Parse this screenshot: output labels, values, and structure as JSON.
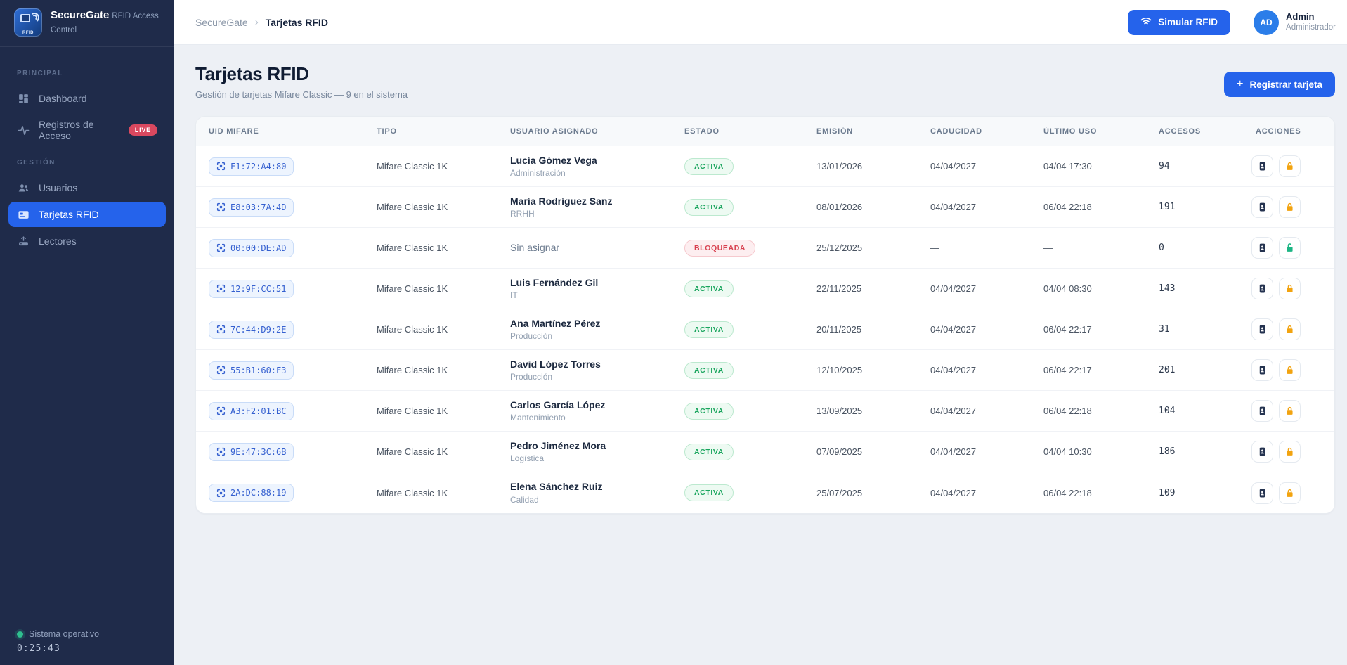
{
  "colors": {
    "sidebar_bg": "#1f2b4a",
    "accent_blue": "#2563eb",
    "live_red": "#d9485f",
    "active_green": "#17a45c",
    "blocked_red": "#d8404f",
    "lock_amber": "#f2a30f",
    "unlock_green": "#1db584"
  },
  "sidebar": {
    "logo": {
      "title": "SecureGate",
      "subtitle": "RFID Access Control",
      "badge_text": "RFID"
    },
    "sections": [
      {
        "label": "PRINCIPAL",
        "items": [
          {
            "label": "Dashboard",
            "icon": "dashboard-icon",
            "active": false
          },
          {
            "label": "Registros de Acceso",
            "icon": "activity-icon",
            "badge": "LIVE",
            "active": false
          }
        ]
      },
      {
        "label": "GESTIÓN",
        "items": [
          {
            "label": "Usuarios",
            "icon": "users-icon",
            "active": false
          },
          {
            "label": "Tarjetas RFID",
            "icon": "card-icon",
            "active": true
          },
          {
            "label": "Lectores",
            "icon": "reader-icon",
            "active": false
          }
        ]
      }
    ],
    "footer": {
      "status_label": "Sistema operativo",
      "uptime": "0:25:43"
    }
  },
  "topbar": {
    "breadcrumb": {
      "root": "SecureGate",
      "current": "Tarjetas RFID"
    },
    "simulate_button": {
      "icon": "wifi-icon",
      "label": "Simular RFID"
    },
    "user": {
      "initials": "AD",
      "name": "Admin",
      "role": "Administrador"
    }
  },
  "page": {
    "title": "Tarjetas RFID",
    "subtitle": "Gestión de tarjetas Mifare Classic — 9 en el sistema",
    "register_button": {
      "icon": "plus-icon",
      "label": "Registrar tarjeta"
    }
  },
  "table": {
    "columns": [
      "UID MIFARE",
      "TIPO",
      "USUARIO ASIGNADO",
      "ESTADO",
      "EMISIÓN",
      "CADUCIDAD",
      "ÚLTIMO USO",
      "ACCESOS",
      "ACCIONES"
    ],
    "rows": [
      {
        "uid": "F1:72:A4:80",
        "tipo": "Mifare Classic 1K",
        "usuario": "Lucía Gómez Vega",
        "departamento": "Administración",
        "estado": "ACTIVA",
        "emision": "13/01/2026",
        "caducidad": "04/04/2027",
        "ultimo_uso": "04/04 17:30",
        "accesos": "94",
        "lock_icon": "lock-closed-icon"
      },
      {
        "uid": "E8:03:7A:4D",
        "tipo": "Mifare Classic 1K",
        "usuario": "María Rodríguez Sanz",
        "departamento": "RRHH",
        "estado": "ACTIVA",
        "emision": "08/01/2026",
        "caducidad": "04/04/2027",
        "ultimo_uso": "06/04 22:18",
        "accesos": "191",
        "lock_icon": "lock-closed-icon"
      },
      {
        "uid": "00:00:DE:AD",
        "tipo": "Mifare Classic 1K",
        "usuario": "Sin asignar",
        "departamento": "",
        "estado": "BLOQUEADA",
        "emision": "25/12/2025",
        "caducidad": "—",
        "ultimo_uso": "—",
        "accesos": "0",
        "lock_icon": "lock-open-icon"
      },
      {
        "uid": "12:9F:CC:51",
        "tipo": "Mifare Classic 1K",
        "usuario": "Luis Fernández Gil",
        "departamento": "IT",
        "estado": "ACTIVA",
        "emision": "22/11/2025",
        "caducidad": "04/04/2027",
        "ultimo_uso": "04/04 08:30",
        "accesos": "143",
        "lock_icon": "lock-closed-icon"
      },
      {
        "uid": "7C:44:D9:2E",
        "tipo": "Mifare Classic 1K",
        "usuario": "Ana Martínez Pérez",
        "departamento": "Producción",
        "estado": "ACTIVA",
        "emision": "20/11/2025",
        "caducidad": "04/04/2027",
        "ultimo_uso": "06/04 22:17",
        "accesos": "31",
        "lock_icon": "lock-closed-icon"
      },
      {
        "uid": "55:B1:60:F3",
        "tipo": "Mifare Classic 1K",
        "usuario": "David López Torres",
        "departamento": "Producción",
        "estado": "ACTIVA",
        "emision": "12/10/2025",
        "caducidad": "04/04/2027",
        "ultimo_uso": "06/04 22:17",
        "accesos": "201",
        "lock_icon": "lock-closed-icon"
      },
      {
        "uid": "A3:F2:01:BC",
        "tipo": "Mifare Classic 1K",
        "usuario": "Carlos García López",
        "departamento": "Mantenimiento",
        "estado": "ACTIVA",
        "emision": "13/09/2025",
        "caducidad": "04/04/2027",
        "ultimo_uso": "06/04 22:18",
        "accesos": "104",
        "lock_icon": "lock-closed-icon"
      },
      {
        "uid": "9E:47:3C:6B",
        "tipo": "Mifare Classic 1K",
        "usuario": "Pedro Jiménez Mora",
        "departamento": "Logística",
        "estado": "ACTIVA",
        "emision": "07/09/2025",
        "caducidad": "04/04/2027",
        "ultimo_uso": "04/04 10:30",
        "accesos": "186",
        "lock_icon": "lock-closed-icon"
      },
      {
        "uid": "2A:DC:88:19",
        "tipo": "Mifare Classic 1K",
        "usuario": "Elena Sánchez Ruiz",
        "departamento": "Calidad",
        "estado": "ACTIVA",
        "emision": "25/07/2025",
        "caducidad": "04/04/2027",
        "ultimo_uso": "06/04 22:18",
        "accesos": "109",
        "lock_icon": "lock-closed-icon"
      }
    ]
  }
}
